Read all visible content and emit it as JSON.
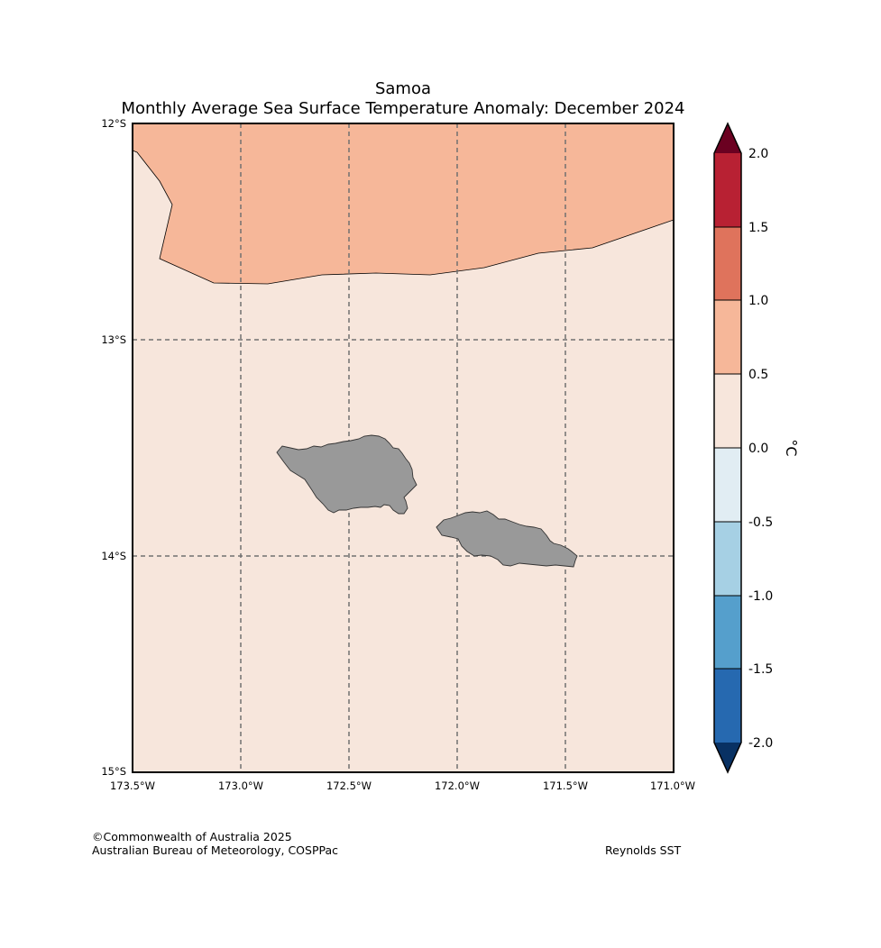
{
  "map": {
    "title": "Samoa",
    "subtitle": "Monthly Average Sea Surface Temperature Anomaly: December 2024",
    "region": "Samoa",
    "extent": {
      "lon": [
        -173.5,
        -171.0
      ],
      "lat": [
        -15.0,
        -12.0
      ]
    },
    "lon_ticks": [
      {
        "value": -173.5,
        "label": "173.5°W"
      },
      {
        "value": -173.0,
        "label": "173.0°W"
      },
      {
        "value": -172.5,
        "label": "172.5°W"
      },
      {
        "value": -172.0,
        "label": "172.0°W"
      },
      {
        "value": -171.5,
        "label": "171.5°W"
      },
      {
        "value": -171.0,
        "label": "171.0°W"
      }
    ],
    "lat_ticks": [
      {
        "value": -12,
        "label": "12°S"
      },
      {
        "value": -13,
        "label": "13°S"
      },
      {
        "value": -14,
        "label": "14°S"
      },
      {
        "value": -15,
        "label": "15°S"
      }
    ],
    "fill_colors": {
      "anomaly_0_0.5": "#f7e6dc",
      "anomaly_0.5_1.0": "#f6b799",
      "land": "#999999",
      "gridline": "#707070"
    }
  },
  "colorbar": {
    "unit": "°C",
    "ticks": [
      {
        "value": 2.0,
        "label": "2.0"
      },
      {
        "value": 1.5,
        "label": "1.5"
      },
      {
        "value": 1.0,
        "label": "1.0"
      },
      {
        "value": 0.5,
        "label": "0.5"
      },
      {
        "value": 0.0,
        "label": "0.0"
      },
      {
        "value": -0.5,
        "label": "-0.5"
      },
      {
        "value": -1.0,
        "label": "-1.0"
      },
      {
        "value": -1.5,
        "label": "-1.5"
      },
      {
        "value": -2.0,
        "label": "-2.0"
      }
    ],
    "bins": [
      {
        "from": 1.5,
        "to": 2.0,
        "color": "#b82133"
      },
      {
        "from": 1.0,
        "to": 1.5,
        "color": "#df735c"
      },
      {
        "from": 0.5,
        "to": 1.0,
        "color": "#f6b799"
      },
      {
        "from": 0.0,
        "to": 0.5,
        "color": "#f7e6dc"
      },
      {
        "from": -0.5,
        "to": 0.0,
        "color": "#e1edf3"
      },
      {
        "from": -1.0,
        "to": -0.5,
        "color": "#a6d0e4"
      },
      {
        "from": -1.5,
        "to": -1.0,
        "color": "#559fcc"
      },
      {
        "from": -2.0,
        "to": -1.5,
        "color": "#2669b0"
      }
    ],
    "over_color": "#6b0121",
    "under_color": "#083163"
  },
  "footer": {
    "copyright": "©Commonwealth of Australia 2025",
    "organization": "Australian Bureau of Meteorology, COSPPac",
    "source": "Reynolds SST"
  }
}
